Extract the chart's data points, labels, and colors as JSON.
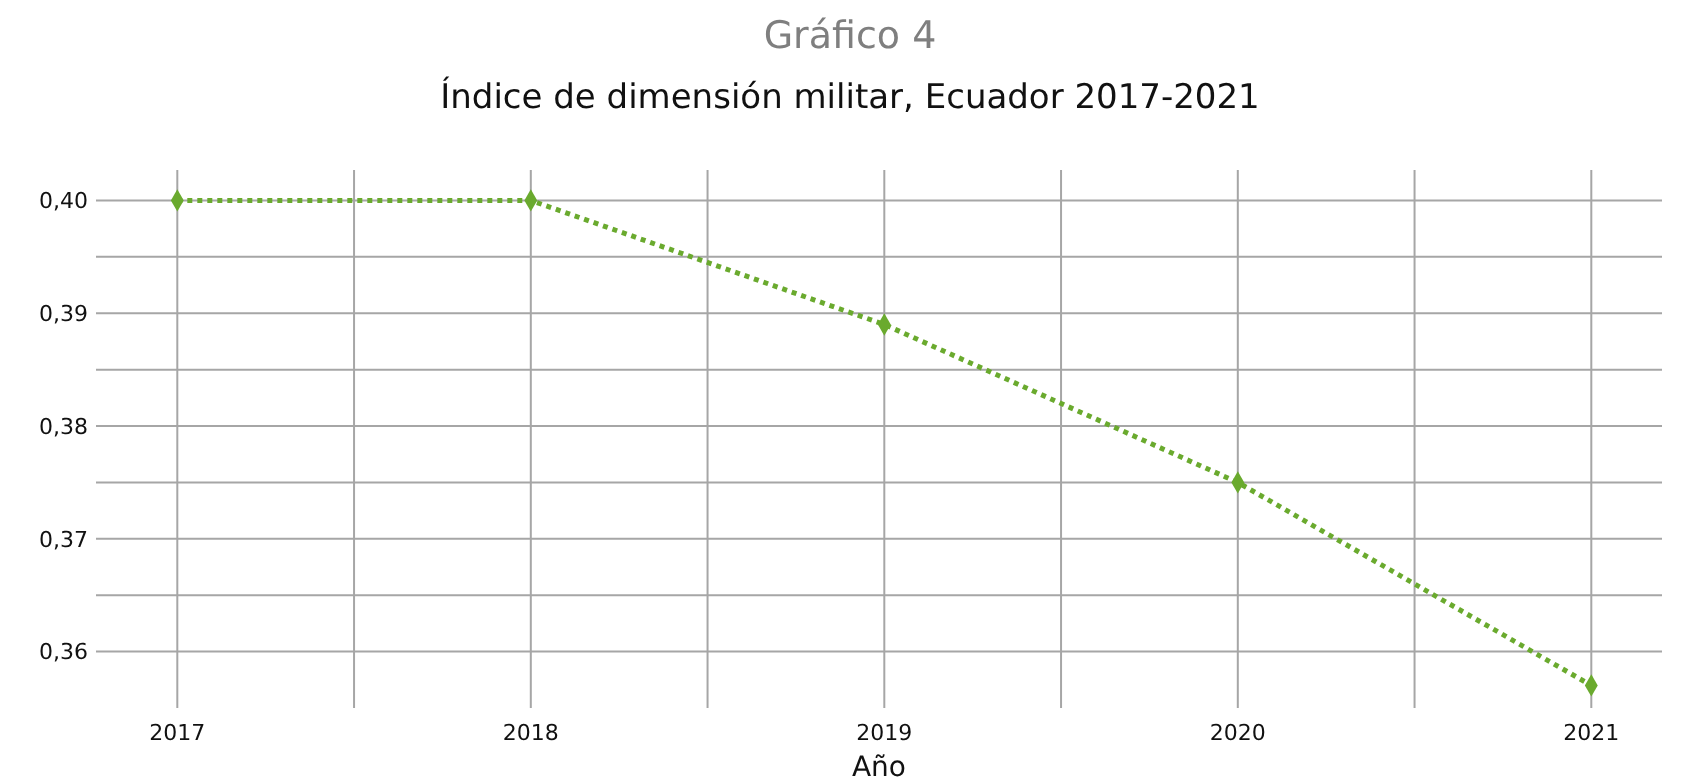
{
  "chart_data": {
    "type": "line",
    "title": "Gráfico 4",
    "subtitle": "Índice de dimensión militar, Ecuador 2017-2021",
    "xlabel": "Año",
    "x": [
      2017,
      2018,
      2019,
      2020,
      2021
    ],
    "series": [
      {
        "color": "#6aaa2e",
        "values": [
          0.4,
          0.4,
          0.389,
          0.375,
          0.357
        ]
      }
    ],
    "xlim": [
      2016.77,
      2021.2
    ],
    "xticks": [
      2017,
      {
        "value": 2017.5,
        "label": null
      },
      2018,
      {
        "value": 2018.5,
        "label": null
      },
      2019,
      {
        "value": 2019.5,
        "label": null
      },
      2020,
      {
        "value": 2020.5,
        "label": null
      },
      2021
    ],
    "ylim": [
      0.355,
      0.4027
    ],
    "yticks": [
      {
        "value": 0.36,
        "label": "0,36"
      },
      {
        "value": 0.365,
        "label": null
      },
      {
        "value": 0.37,
        "label": "0,37"
      },
      {
        "value": 0.375,
        "label": null
      },
      {
        "value": 0.38,
        "label": "0,38"
      },
      {
        "value": 0.385,
        "label": null
      },
      {
        "value": 0.39,
        "label": "0,39"
      },
      {
        "value": 0.395,
        "label": null
      },
      {
        "value": 0.4,
        "label": "0,40"
      }
    ],
    "grid": true,
    "marker": "diamond",
    "line_style": "dotted"
  }
}
